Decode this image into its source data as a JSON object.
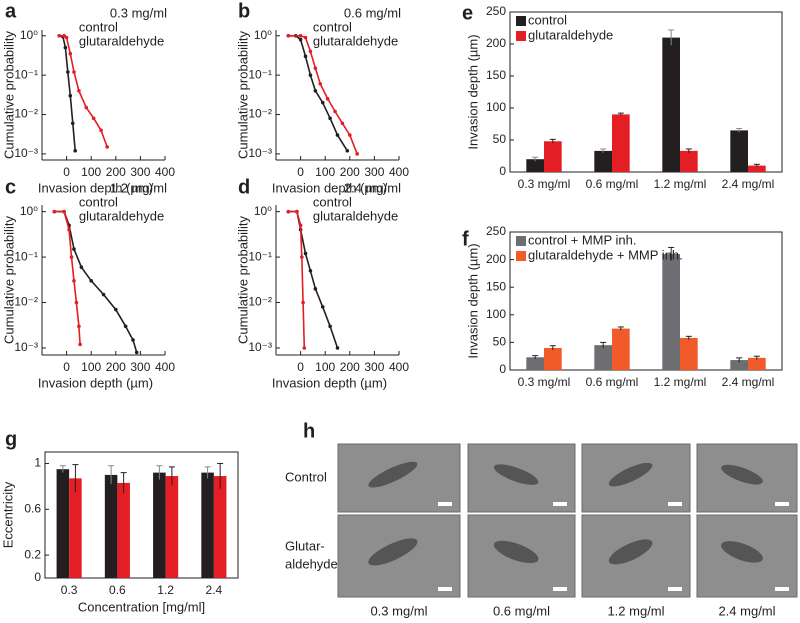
{
  "chart_data": [
    {
      "type": "line",
      "panel_label": "a",
      "subtitle": "0.3 mg/ml",
      "x_label": "Invasion depth (µm)",
      "y_label": "Cumulative probability",
      "log_y": true,
      "xlim": [
        -100,
        400
      ],
      "xticks": [
        0,
        100,
        200,
        300,
        400
      ],
      "ylim": [
        0.0007,
        1.4
      ],
      "yticks": [
        {
          "value": 1,
          "label": "10⁰"
        },
        {
          "value": 0.1,
          "label": "10⁻¹"
        },
        {
          "value": 0.01,
          "label": "10⁻²"
        },
        {
          "value": 0.001,
          "label": "10⁻³"
        }
      ],
      "legend": "top-right",
      "series": [
        {
          "name": "control",
          "color": "#231f20",
          "x": [
            -30,
            -15,
            -5,
            5,
            15,
            25,
            35
          ],
          "values": [
            1,
            0.95,
            0.5,
            0.12,
            0.03,
            0.006,
            0.0012
          ]
        },
        {
          "name": "glutaraldehyde",
          "color": "#e31e24",
          "x": [
            -30,
            -10,
            0,
            15,
            30,
            50,
            80,
            110,
            140,
            165
          ],
          "values": [
            1,
            1,
            0.9,
            0.35,
            0.12,
            0.04,
            0.015,
            0.008,
            0.004,
            0.0015
          ]
        }
      ]
    },
    {
      "type": "line",
      "panel_label": "b",
      "subtitle": "0.6 mg/ml",
      "x_label": "Invasion depth (µm)",
      "y_label": "Cumulative probability",
      "log_y": true,
      "xlim": [
        -100,
        400
      ],
      "xticks": [
        0,
        100,
        200,
        300,
        400
      ],
      "ylim": [
        0.0007,
        1.4
      ],
      "yticks": [
        {
          "value": 1,
          "label": "10⁰"
        },
        {
          "value": 0.1,
          "label": "10⁻¹"
        },
        {
          "value": 0.01,
          "label": "10⁻²"
        },
        {
          "value": 0.001,
          "label": "10⁻³"
        }
      ],
      "legend": "top-right",
      "series": [
        {
          "name": "control",
          "color": "#231f20",
          "x": [
            -50,
            -20,
            0,
            20,
            40,
            60,
            90,
            120,
            150,
            190
          ],
          "values": [
            1,
            1,
            0.8,
            0.3,
            0.1,
            0.04,
            0.02,
            0.008,
            0.003,
            0.0012
          ]
        },
        {
          "name": "glutaraldehyde",
          "color": "#e31e24",
          "x": [
            -50,
            0,
            20,
            40,
            60,
            80,
            110,
            140,
            170,
            200,
            230
          ],
          "values": [
            1,
            1,
            0.9,
            0.4,
            0.15,
            0.06,
            0.025,
            0.012,
            0.006,
            0.003,
            0.001
          ]
        }
      ]
    },
    {
      "type": "line",
      "panel_label": "c",
      "subtitle": "1.2 mg/ml",
      "x_label": "Invasion depth (µm)",
      "y_label": "Cumulative probability",
      "log_y": true,
      "xlim": [
        -100,
        400
      ],
      "xticks": [
        0,
        100,
        200,
        300,
        400
      ],
      "ylim": [
        0.0007,
        1.4
      ],
      "yticks": [
        {
          "value": 1,
          "label": "10⁰"
        },
        {
          "value": 0.1,
          "label": "10⁻¹"
        },
        {
          "value": 0.01,
          "label": "10⁻²"
        },
        {
          "value": 0.001,
          "label": "10⁻³"
        }
      ],
      "legend": "top-right",
      "series": [
        {
          "name": "control",
          "color": "#231f20",
          "x": [
            -50,
            -10,
            10,
            30,
            60,
            100,
            150,
            200,
            240,
            270,
            285
          ],
          "values": [
            1,
            1,
            0.5,
            0.15,
            0.06,
            0.03,
            0.015,
            0.007,
            0.003,
            0.0015,
            0.0008
          ]
        },
        {
          "name": "glutaraldehyde",
          "color": "#e31e24",
          "x": [
            -50,
            -10,
            10,
            20,
            30,
            40,
            50,
            55
          ],
          "values": [
            1,
            1,
            0.4,
            0.1,
            0.03,
            0.01,
            0.003,
            0.0012
          ]
        }
      ]
    },
    {
      "type": "line",
      "panel_label": "d",
      "subtitle": "2.4 mg/ml",
      "x_label": "Invasion depth (µm)",
      "y_label": "Cumulative probability",
      "log_y": true,
      "xlim": [
        -100,
        400
      ],
      "xticks": [
        0,
        100,
        200,
        300,
        400
      ],
      "ylim": [
        0.0007,
        1.4
      ],
      "yticks": [
        {
          "value": 1,
          "label": "10⁰"
        },
        {
          "value": 0.1,
          "label": "10⁻¹"
        },
        {
          "value": 0.01,
          "label": "10⁻²"
        },
        {
          "value": 0.001,
          "label": "10⁻³"
        }
      ],
      "legend": "top-right",
      "series": [
        {
          "name": "control",
          "color": "#231f20",
          "x": [
            -50,
            -15,
            0,
            20,
            40,
            60,
            90,
            120,
            150
          ],
          "values": [
            1,
            1,
            0.4,
            0.12,
            0.05,
            0.02,
            0.008,
            0.003,
            0.001
          ]
        },
        {
          "name": "glutaraldehyde",
          "color": "#e31e24",
          "x": [
            -50,
            -15,
            0,
            5,
            10,
            15
          ],
          "values": [
            1,
            1,
            0.5,
            0.1,
            0.01,
            0.001
          ]
        }
      ]
    },
    {
      "type": "bar",
      "panel_label": "e",
      "y_label": "Invasion depth (µm)",
      "categories": [
        "0.3 mg/ml",
        "0.6 mg/ml",
        "1.2 mg/ml",
        "2.4 mg/ml"
      ],
      "ylim": [
        0,
        250
      ],
      "yticks": [
        0,
        50,
        100,
        150,
        200,
        250
      ],
      "legend": "top-left",
      "series": [
        {
          "name": "control",
          "color": "#231f20",
          "values": [
            20,
            33,
            210,
            65
          ],
          "errors": [
            3,
            3,
            12,
            3
          ]
        },
        {
          "name": "glutaraldehyde",
          "color": "#e31e24",
          "values": [
            48,
            90,
            33,
            10
          ],
          "errors": [
            3,
            2,
            3,
            2
          ]
        }
      ]
    },
    {
      "type": "bar",
      "panel_label": "f",
      "y_label": "Invasion depth (µm)",
      "categories": [
        "0.3 mg/ml",
        "0.6 mg/ml",
        "1.2 mg/ml",
        "2.4 mg/ml"
      ],
      "ylim": [
        0,
        250
      ],
      "yticks": [
        0,
        50,
        100,
        150,
        200,
        250
      ],
      "legend": "top-left",
      "series": [
        {
          "name": "control + MMP inh.",
          "color": "#6d6e71",
          "values": [
            23,
            45,
            210,
            18
          ],
          "errors": [
            3,
            5,
            12,
            4
          ]
        },
        {
          "name": "glutaraldehyde + MMP inh.",
          "color": "#f15a29",
          "values": [
            40,
            75,
            58,
            22
          ],
          "errors": [
            4,
            3,
            3,
            3
          ]
        }
      ]
    },
    {
      "type": "bar",
      "panel_label": "g",
      "x_label": "Concentration [mg/ml]",
      "y_label": "Eccentricity",
      "categories": [
        "0.3",
        "0.6",
        "1.2",
        "2.4"
      ],
      "ylim": [
        0,
        1.1
      ],
      "yticks": [
        0,
        0.2,
        0.6,
        1
      ],
      "series": [
        {
          "color": "#231f20",
          "values": [
            0.95,
            0.9,
            0.92,
            0.92
          ],
          "errors": [
            0.03,
            0.08,
            0.06,
            0.05
          ]
        },
        {
          "color": "#e31e24",
          "values": [
            0.87,
            0.83,
            0.89,
            0.89
          ],
          "errors": [
            0.12,
            0.09,
            0.08,
            0.11
          ]
        }
      ]
    }
  ],
  "image_panel": {
    "panel_label": "h",
    "row_labels": [
      [
        "Control"
      ],
      [
        "Glutar-",
        "aldehyde"
      ]
    ],
    "column_labels": [
      "0.3 mg/ml",
      "0.6 mg/ml",
      "1.2 mg/ml",
      "2.4 mg/ml"
    ]
  }
}
